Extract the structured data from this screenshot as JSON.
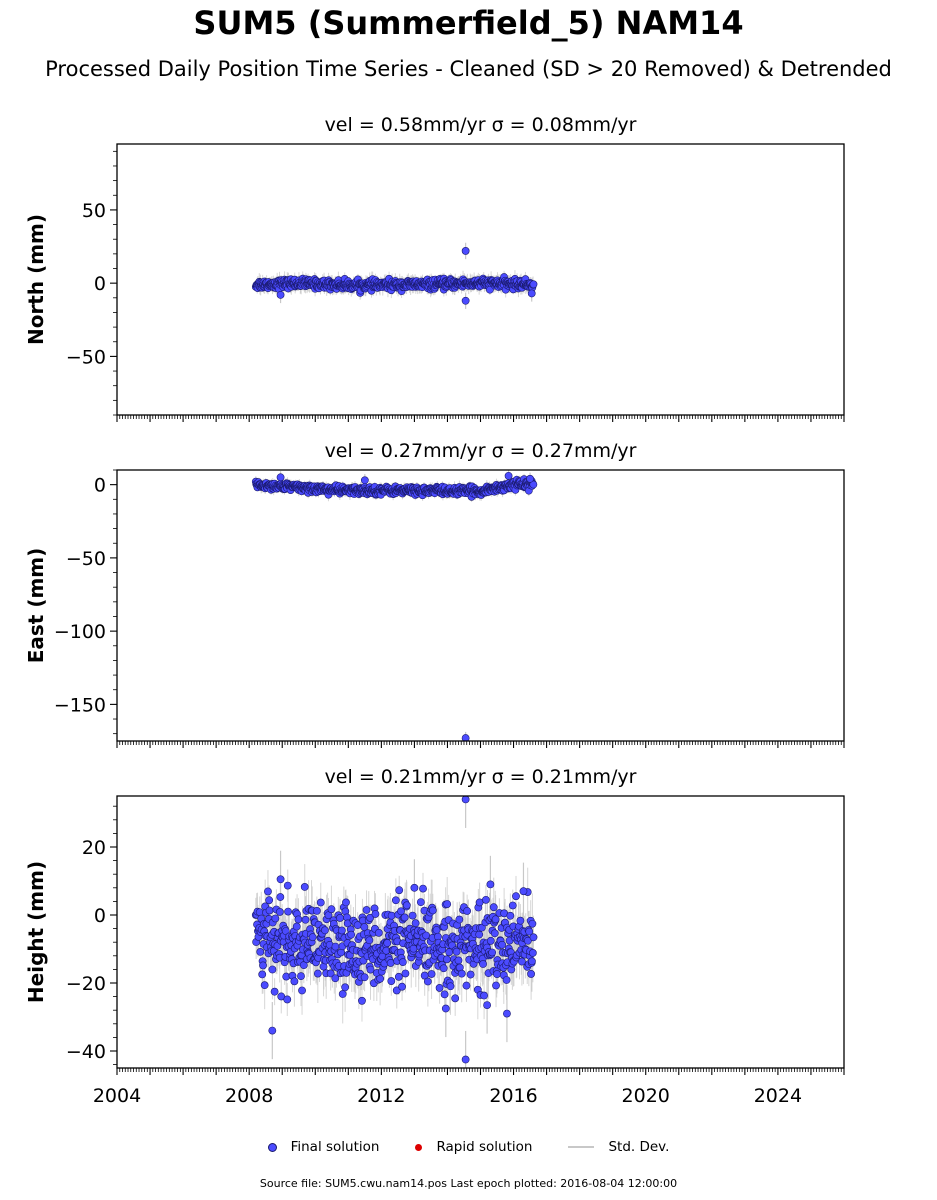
{
  "title": "SUM5 (Summerfield_5) NAM14",
  "subtitle": "Processed Daily Position Time Series - Cleaned (SD > 20 Removed) & Detrended",
  "legend": {
    "final": "Final solution",
    "rapid": "Rapid solution",
    "std": "Std. Dev."
  },
  "footer": "Source file: SUM5.cwu.nam14.pos  Last epoch plotted: 2016-08-04 12:00:00",
  "colors": {
    "final_fill": "#4b4bff",
    "final_edge": "#1a1a6e",
    "rapid": "#dd0000",
    "std_dev": "#c8c8c8"
  },
  "chart_data": [
    {
      "type": "scatter",
      "component": "North",
      "title": "vel = 0.58mm/yr   σ = 0.08mm/yr",
      "ylabel": "North (mm)",
      "xlim": [
        2004,
        2026
      ],
      "ylim": [
        -90,
        95
      ],
      "yticks": [
        -50,
        0,
        50
      ],
      "xticks": [],
      "data_span": [
        2008.2,
        2016.6
      ],
      "baseline": [
        [
          2008.2,
          -1
        ],
        [
          2009.5,
          0
        ],
        [
          2011.0,
          -1.5
        ],
        [
          2013.0,
          -1
        ],
        [
          2015.0,
          0
        ],
        [
          2016.6,
          -1
        ]
      ],
      "scatter_sd": 1.5,
      "std_halfwidth": 4,
      "outliers": [
        [
          2014.55,
          22
        ],
        [
          2014.55,
          -12
        ],
        [
          2008.95,
          -8
        ],
        [
          2016.55,
          -7
        ]
      ]
    },
    {
      "type": "scatter",
      "component": "East",
      "title": "vel = 0.27mm/yr   σ = 0.27mm/yr",
      "ylabel": "East (mm)",
      "xlim": [
        2004,
        2026
      ],
      "ylim": [
        -175,
        10
      ],
      "yticks": [
        -150,
        -100,
        -50,
        0
      ],
      "xticks": [],
      "data_span": [
        2008.2,
        2016.6
      ],
      "baseline": [
        [
          2008.2,
          0
        ],
        [
          2009.5,
          -2
        ],
        [
          2011.0,
          -4
        ],
        [
          2013.0,
          -4
        ],
        [
          2015.0,
          -4.5
        ],
        [
          2016.0,
          0
        ],
        [
          2016.6,
          1
        ]
      ],
      "scatter_sd": 1.3,
      "std_halfwidth": 3,
      "outliers": [
        [
          2014.55,
          -173
        ],
        [
          2008.95,
          5
        ],
        [
          2011.5,
          3
        ],
        [
          2015.85,
          6
        ],
        [
          2016.5,
          4
        ]
      ]
    },
    {
      "type": "scatter",
      "component": "Height",
      "title": "vel = 0.21mm/yr   σ = 0.21mm/yr",
      "ylabel": "Height (mm)",
      "xlim": [
        2004,
        2026
      ],
      "ylim": [
        -45,
        35
      ],
      "yticks": [
        -40,
        -20,
        0,
        20
      ],
      "xticks": [
        2004,
        2008,
        2012,
        2016,
        2020,
        2024
      ],
      "data_span": [
        2008.2,
        2016.6
      ],
      "baseline": [
        [
          2008.2,
          -2
        ],
        [
          2008.6,
          -8
        ],
        [
          2010.0,
          -10
        ],
        [
          2012.0,
          -9
        ],
        [
          2014.0,
          -9
        ],
        [
          2016.0,
          -9
        ],
        [
          2016.6,
          -8
        ]
      ],
      "scatter_sd": 6,
      "std_halfwidth": 6,
      "outliers": [
        [
          2014.55,
          34
        ],
        [
          2014.55,
          -42.5
        ],
        [
          2008.7,
          -34
        ],
        [
          2015.8,
          -29
        ],
        [
          2015.2,
          -26.5
        ],
        [
          2013.95,
          -27.5
        ],
        [
          2008.95,
          10.5
        ],
        [
          2013.0,
          8
        ],
        [
          2015.3,
          9
        ],
        [
          2016.3,
          7
        ]
      ]
    }
  ]
}
